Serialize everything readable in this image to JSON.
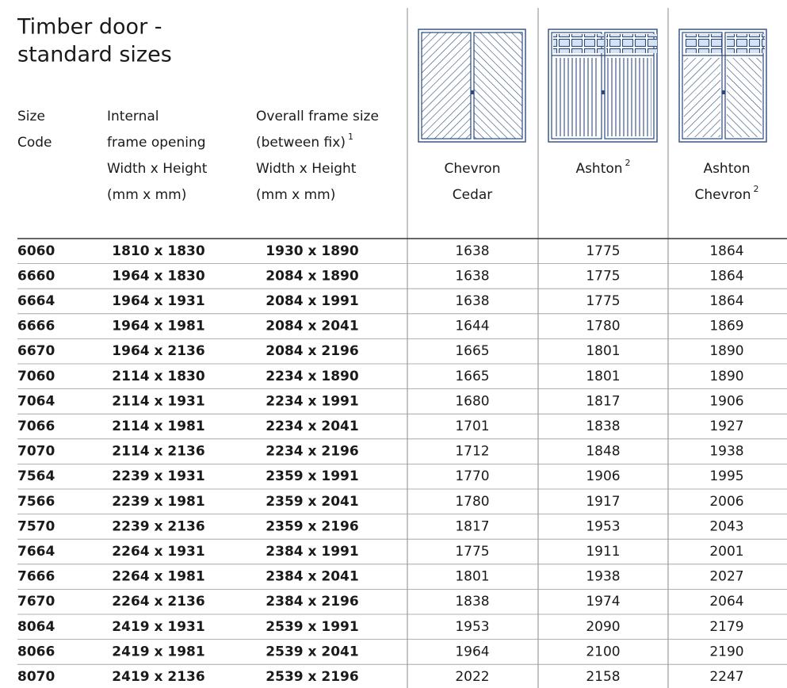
{
  "title": {
    "lines": [
      "Timber door -",
      "standard sizes"
    ]
  },
  "header": {
    "columns": [
      {
        "lines": [
          "Size",
          "Code"
        ]
      },
      {
        "lines": [
          "Internal",
          "frame opening",
          "Width x Height",
          "(mm x mm)"
        ]
      },
      {
        "lines": [
          "Overall frame size",
          {
            "text": "(between fix)",
            "sup": "1"
          },
          "Width x Height",
          "(mm x mm)"
        ]
      },
      {
        "lines": [
          "Chevron",
          "Cedar"
        ]
      },
      {
        "lines": [
          {
            "text": "Ashton",
            "sup": "2"
          }
        ]
      },
      {
        "lines": [
          "Ashton",
          {
            "text": "Chevron",
            "sup": "2"
          }
        ]
      }
    ]
  },
  "table": {
    "rows": [
      [
        "6060",
        "1810 x 1830",
        "1930 x 1890",
        "1638",
        "1775",
        "1864"
      ],
      [
        "6660",
        "1964 x 1830",
        "2084 x 1890",
        "1638",
        "1775",
        "1864"
      ],
      [
        "6664",
        "1964 x 1931",
        "2084 x 1991",
        "1638",
        "1775",
        "1864"
      ],
      [
        "6666",
        "1964 x 1981",
        "2084 x 2041",
        "1644",
        "1780",
        "1869"
      ],
      [
        "6670",
        "1964 x 2136",
        "2084 x 2196",
        "1665",
        "1801",
        "1890"
      ],
      [
        "7060",
        "2114 x 1830",
        "2234 x 1890",
        "1665",
        "1801",
        "1890"
      ],
      [
        "7064",
        "2114 x 1931",
        "2234 x 1991",
        "1680",
        "1817",
        "1906"
      ],
      [
        "7066",
        "2114 x 1981",
        "2234 x 2041",
        "1701",
        "1838",
        "1927"
      ],
      [
        "7070",
        "2114 x 2136",
        "2234 x 2196",
        "1712",
        "1848",
        "1938"
      ],
      [
        "7564",
        "2239 x 1931",
        "2359 x 1991",
        "1770",
        "1906",
        "1995"
      ],
      [
        "7566",
        "2239 x 1981",
        "2359 x 2041",
        "1780",
        "1917",
        "2006"
      ],
      [
        "7570",
        "2239 x 2136",
        "2359 x 2196",
        "1817",
        "1953",
        "2043"
      ],
      [
        "7664",
        "2264 x 1931",
        "2384 x 1991",
        "1775",
        "1911",
        "2001"
      ],
      [
        "7666",
        "2264 x 1981",
        "2384 x 2041",
        "1801",
        "1938",
        "2027"
      ],
      [
        "7670",
        "2264 x 2136",
        "2384 x 2196",
        "1838",
        "1974",
        "2064"
      ],
      [
        "8064",
        "2419 x 1931",
        "2539 x 1991",
        "1953",
        "2090",
        "2179"
      ],
      [
        "8066",
        "2419 x 1981",
        "2539 x 2041",
        "1964",
        "2100",
        "2190"
      ],
      [
        "8070",
        "2419 x 2136",
        "2539 x 2196",
        "2022",
        "2158",
        "2247"
      ]
    ]
  }
}
